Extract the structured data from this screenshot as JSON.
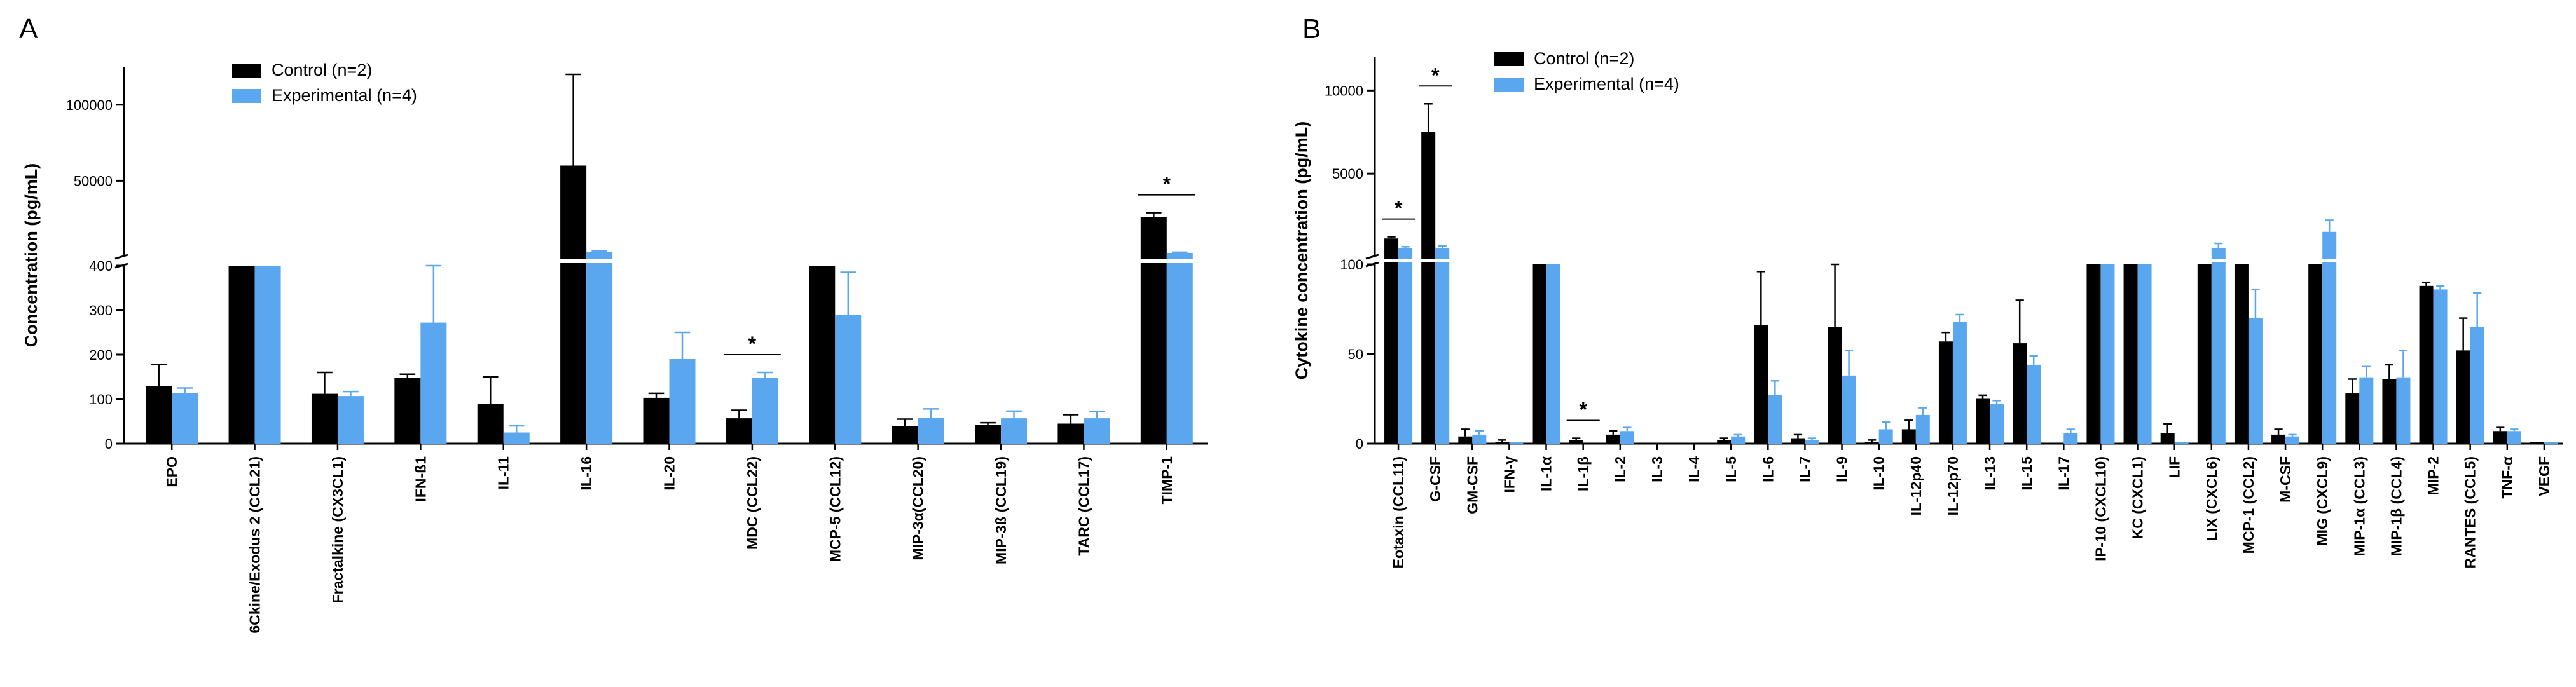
{
  "colors": {
    "control": "#000000",
    "experimental": "#5aa7f0",
    "axis": "#000000"
  },
  "legend": {
    "control": "Control (n=2)",
    "experimental": "Experimental (n=4)"
  },
  "chart_data": [
    {
      "panel": "A",
      "type": "bar",
      "ylabel": "Concentration (pg/mL)",
      "y_axis": "broken",
      "ylim_lower": [
        0,
        400
      ],
      "ylim_upper": [
        400,
        125000
      ],
      "yticks_lower": [
        "0",
        "100",
        "200",
        "300",
        "400"
      ],
      "yticks_upper": [
        "50000",
        "100000"
      ],
      "legend_position": "top-center",
      "categories": [
        "EPO",
        "6Ckine/Exodus 2 (CCL21)",
        "Fractalkine (CX3CL1)",
        "IFN-ß1",
        "IL-11",
        "IL-16",
        "IL-20",
        "MDC (CCL22)",
        "MCP-5 (CCL12)",
        "MIP-3α(CCL20)",
        "MIP-3ß (CCL19)",
        "TARC (CCL17)",
        "TIMP-1"
      ],
      "series": [
        {
          "name": "Control (n=2)",
          "values": [
            130,
            400,
            112,
            148,
            90,
            60000,
            103,
            57,
            400,
            40,
            42,
            45,
            26000
          ],
          "errors": [
            48,
            0,
            48,
            8,
            60,
            60000,
            10,
            18,
            0,
            15,
            5,
            20,
            3000
          ]
        },
        {
          "name": "Experimental (n=4)",
          "values": [
            113,
            400,
            107,
            272,
            25,
            3000,
            190,
            148,
            290,
            58,
            57,
            57,
            2500
          ],
          "errors": [
            12,
            0,
            10,
            128,
            15,
            800,
            60,
            12,
            95,
            20,
            16,
            15,
            500
          ]
        }
      ],
      "significance": [
        {
          "category": "MDC (CCL22)",
          "label": "*"
        },
        {
          "category": "TIMP-1",
          "label": "*"
        }
      ]
    },
    {
      "panel": "B",
      "type": "bar",
      "ylabel": "Cytokine concentration (pg/mL)",
      "y_axis": "broken",
      "ylim_lower": [
        0,
        100
      ],
      "ylim_upper": [
        100,
        12000
      ],
      "yticks_lower": [
        "0",
        "50",
        "100"
      ],
      "yticks_upper": [
        "5000",
        "10000"
      ],
      "legend_position": "top-left",
      "categories": [
        "Eotaxin (CCL11)",
        "G-CSF",
        "GM-CSF",
        "IFN-γ",
        "IL-1α",
        "IL-1β",
        "IL-2",
        "IL-3",
        "IL-4",
        "IL-5",
        "IL-6",
        "IL-7",
        "IL-9",
        "IL-10",
        "IL-12p40",
        "IL-12p70",
        "IL-13",
        "IL-15",
        "IL-17",
        "IP-10 (CXCL10)",
        "KC (CXCL1)",
        "LIF",
        "LIX (CXCL6)",
        "MCP-1 (CCL2)",
        "M-CSF",
        "MIG (CXCL9)",
        "MIP-1α (CCL3)",
        "MIP-1β (CCL4)",
        "MIP-2",
        "RANTES (CCL5)",
        "TNF-α",
        "VEGF"
      ],
      "series": [
        {
          "name": "Control (n=2)",
          "values": [
            1100,
            7500,
            4,
            1,
            100,
            2,
            5,
            0,
            0,
            2,
            66,
            3,
            65,
            1,
            8,
            57,
            25,
            56,
            0,
            100,
            100,
            6,
            100,
            100,
            5,
            100,
            28,
            36,
            88,
            52,
            7,
            1
          ],
          "errors": [
            100,
            1700,
            4,
            1,
            0,
            1,
            2,
            0,
            0,
            1,
            30,
            2,
            35,
            1,
            5,
            5,
            2,
            24,
            0,
            0,
            0,
            5,
            0,
            0,
            3,
            0,
            8,
            8,
            2,
            18,
            2,
            0
          ]
        },
        {
          "name": "Experimental (n=4)",
          "values": [
            500,
            500,
            5,
            1,
            100,
            0,
            7,
            0,
            0,
            4,
            27,
            2,
            38,
            8,
            16,
            68,
            22,
            44,
            6,
            100,
            100,
            1,
            500,
            70,
            4,
            1500,
            37,
            37,
            86,
            65,
            7,
            1
          ],
          "errors": [
            100,
            150,
            2,
            0,
            0,
            0,
            2,
            0,
            0,
            1,
            8,
            1,
            14,
            4,
            4,
            4,
            2,
            5,
            2,
            0,
            0,
            0,
            300,
            16,
            1,
            700,
            6,
            15,
            2,
            19,
            1,
            0
          ]
        }
      ],
      "significance": [
        {
          "category": "Eotaxin (CCL11)",
          "label": "*"
        },
        {
          "category": "G-CSF",
          "label": "*"
        },
        {
          "category": "IL-1β",
          "label": "*"
        }
      ]
    }
  ]
}
